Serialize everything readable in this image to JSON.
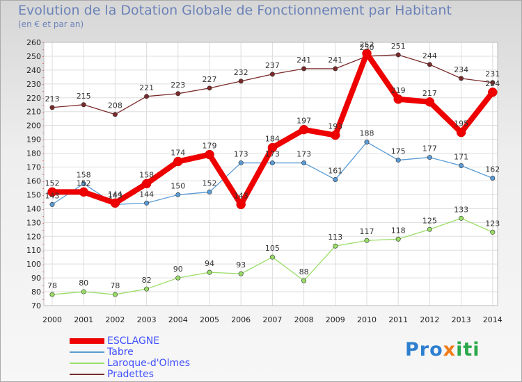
{
  "chart_data": {
    "type": "line",
    "title": "Evolution de la Dotation Globale de Fonctionnement par Habitant",
    "subtitle": "(en € et par an)",
    "xlabel": "",
    "ylabel": "",
    "ylim": [
      70,
      260
    ],
    "yticks": [
      70,
      80,
      90,
      100,
      110,
      120,
      130,
      140,
      150,
      160,
      170,
      180,
      190,
      200,
      210,
      220,
      230,
      240,
      250,
      260
    ],
    "categories": [
      "2000",
      "2001",
      "2002",
      "2003",
      "2004",
      "2005",
      "2006",
      "2007",
      "2008",
      "2009",
      "2010",
      "2011",
      "2012",
      "2013",
      "2014"
    ],
    "series": [
      {
        "name": "ESCLAGNE",
        "color": "#ee0000",
        "values": [
          152,
          152,
          144,
          158,
          174,
          179,
          143,
          184,
          197,
          193,
          252,
          219,
          217,
          195,
          224
        ]
      },
      {
        "name": "Tabre",
        "color": "#5a9bd5",
        "values": [
          143,
          158,
          143,
          144,
          150,
          152,
          173,
          173,
          173,
          161,
          188,
          175,
          177,
          171,
          162
        ]
      },
      {
        "name": "Laroque-d'Olmes",
        "color": "#99dd66",
        "values": [
          78,
          80,
          78,
          82,
          90,
          94,
          93,
          105,
          88,
          113,
          117,
          118,
          125,
          133,
          123
        ]
      },
      {
        "name": "Pradettes",
        "color": "#7a2a2a",
        "values": [
          213,
          215,
          208,
          221,
          223,
          227,
          232,
          237,
          241,
          241,
          250,
          251,
          244,
          234,
          231
        ]
      }
    ],
    "legend_position": "bottom-left"
  },
  "logo": {
    "part1": "Pro",
    "part2": "x",
    "part3": "iti"
  }
}
